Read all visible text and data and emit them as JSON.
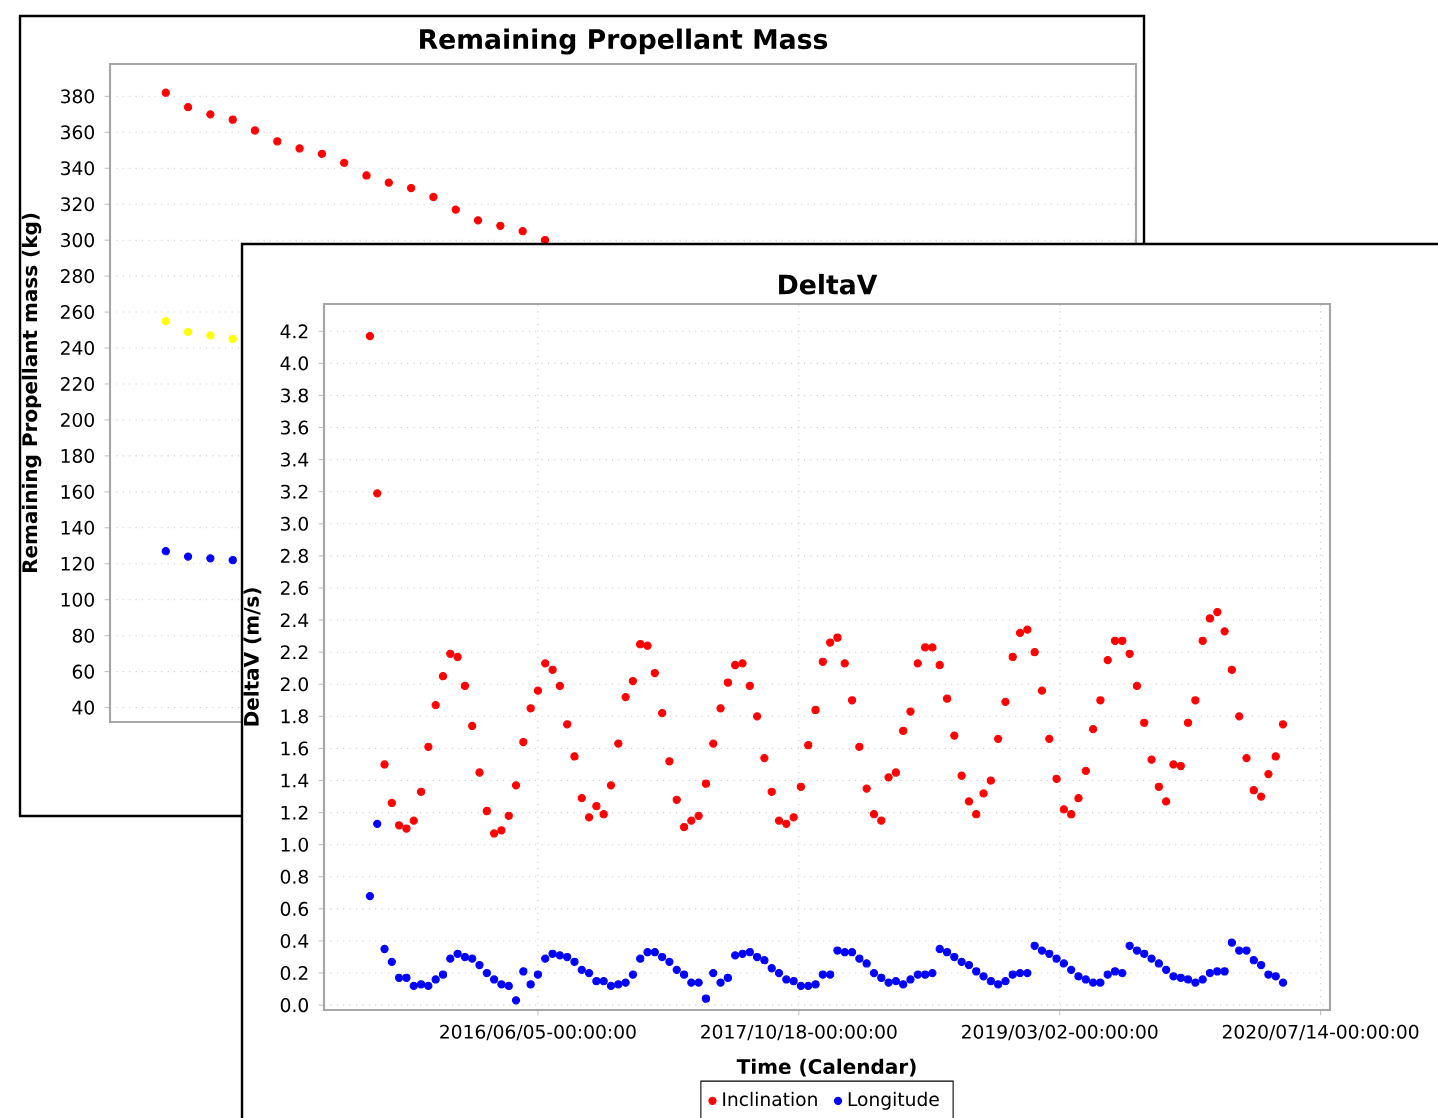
{
  "chart_data": [
    {
      "type": "scatter",
      "title": "Remaining Propellant Mass",
      "ylabel": "Remaining Propellant mass (kg)",
      "categories": [
        null,
        null,
        null,
        null,
        null,
        null,
        null,
        null,
        null,
        null,
        null,
        null,
        null,
        null,
        null,
        null,
        null,
        null,
        null,
        null,
        null,
        null,
        null,
        null,
        null,
        null,
        null,
        null,
        null,
        null,
        null,
        null,
        null,
        null,
        null,
        null,
        null,
        null,
        null,
        null,
        null,
        null,
        null,
        null,
        null,
        null
      ],
      "series": [
        {
          "color": "#ff0000",
          "values": [
            null,
            null,
            382,
            374,
            370,
            367,
            361,
            355,
            351,
            348,
            343,
            336,
            332,
            329,
            324,
            317,
            311,
            308,
            305,
            300,
            null,
            null,
            null,
            null,
            null,
            null,
            null,
            null,
            null,
            null,
            null,
            null,
            null,
            null,
            null,
            null,
            null,
            null,
            null,
            null,
            null,
            null,
            null,
            null,
            null,
            null
          ]
        },
        {
          "color": "#ffff00",
          "values": [
            null,
            null,
            255,
            249,
            247,
            245,
            null,
            null,
            null,
            null,
            null,
            null,
            null,
            null,
            null,
            null,
            null,
            null,
            null,
            null,
            null,
            null,
            null,
            null,
            null,
            null,
            null,
            null,
            null,
            null,
            null,
            null,
            null,
            null,
            null,
            null,
            null,
            null,
            null,
            null,
            null,
            null,
            null,
            null,
            null,
            null
          ]
        },
        {
          "color": "#0000ff",
          "values": [
            null,
            null,
            127,
            124,
            123,
            122,
            null,
            null,
            null,
            null,
            null,
            null,
            null,
            null,
            null,
            null,
            null,
            null,
            null,
            null,
            null,
            null,
            null,
            null,
            null,
            null,
            null,
            null,
            null,
            null,
            null,
            null,
            null,
            null,
            null,
            null,
            null,
            null,
            null,
            null,
            null,
            null,
            null,
            null,
            null,
            null
          ]
        }
      ],
      "ylim": [
        32,
        398
      ],
      "yticks": [
        40,
        60,
        80,
        100,
        120,
        140,
        160,
        180,
        200,
        220,
        240,
        260,
        280,
        300,
        320,
        340,
        360,
        380
      ],
      "grid": "y",
      "marker": "circle",
      "tick_labels": "y"
    },
    {
      "type": "scatter",
      "title": "DeltaV",
      "xlabel": "Time (Calendar)",
      "ylabel": "DeltaV (m/s)",
      "x": [
        "2015-07-19",
        "2015-08-02",
        "2015-08-16",
        "2015-08-30",
        "2015-09-13",
        "2015-09-27",
        "2015-10-11",
        "2015-10-25",
        "2015-11-08",
        "2015-11-22",
        "2015-12-06",
        "2015-12-20",
        "2016-01-03",
        "2016-01-17",
        "2016-01-31",
        "2016-02-14",
        "2016-02-28",
        "2016-03-13",
        "2016-03-27",
        "2016-04-10",
        "2016-04-24",
        "2016-05-08",
        "2016-05-22",
        "2016-06-05",
        "2016-06-19",
        "2016-07-03",
        "2016-07-17",
        "2016-07-31",
        "2016-08-14",
        "2016-08-28",
        "2016-09-11",
        "2016-09-25",
        "2016-10-09",
        "2016-10-23",
        "2016-11-06",
        "2016-11-20",
        "2016-12-04",
        "2016-12-18",
        "2017-01-01",
        "2017-01-15",
        "2017-01-29",
        "2017-02-12",
        "2017-02-26",
        "2017-03-12",
        "2017-03-26",
        "2017-04-09",
        "2017-04-23",
        "2017-05-07",
        "2017-05-21",
        "2017-06-04",
        "2017-06-18",
        "2017-07-02",
        "2017-07-16",
        "2017-07-30",
        "2017-08-13",
        "2017-08-27",
        "2017-09-10",
        "2017-09-24",
        "2017-10-08",
        "2017-10-22",
        "2017-11-05",
        "2017-11-19",
        "2017-12-03",
        "2017-12-17",
        "2017-12-31",
        "2018-01-14",
        "2018-01-28",
        "2018-02-11",
        "2018-02-25",
        "2018-03-11",
        "2018-03-25",
        "2018-04-08",
        "2018-04-22",
        "2018-05-06",
        "2018-05-20",
        "2018-06-03",
        "2018-06-17",
        "2018-07-01",
        "2018-07-15",
        "2018-07-29",
        "2018-08-12",
        "2018-08-26",
        "2018-09-09",
        "2018-09-23",
        "2018-10-07",
        "2018-10-21",
        "2018-11-04",
        "2018-11-18",
        "2018-12-02",
        "2018-12-16",
        "2018-12-30",
        "2019-01-13",
        "2019-01-27",
        "2019-02-10",
        "2019-02-24",
        "2019-03-10",
        "2019-03-24",
        "2019-04-07",
        "2019-04-21",
        "2019-05-05",
        "2019-05-19",
        "2019-06-02",
        "2019-06-16",
        "2019-06-30",
        "2019-07-14",
        "2019-07-28",
        "2019-08-11",
        "2019-08-25",
        "2019-09-08",
        "2019-09-22",
        "2019-10-06",
        "2019-10-20",
        "2019-11-03",
        "2019-11-17",
        "2019-12-01",
        "2019-12-15",
        "2019-12-29",
        "2020-01-12",
        "2020-01-26",
        "2020-02-09",
        "2020-02-23",
        "2020-03-08",
        "2020-03-22",
        "2020-04-05",
        "2020-04-19",
        "2020-05-03"
      ],
      "series": [
        {
          "name": "Inclination",
          "color": "#ff0000",
          "values": [
            4.17,
            3.19,
            1.5,
            1.26,
            1.12,
            1.1,
            1.15,
            1.33,
            1.61,
            1.87,
            2.05,
            2.19,
            2.17,
            1.99,
            1.74,
            1.45,
            1.21,
            1.07,
            1.09,
            1.18,
            1.37,
            1.64,
            1.85,
            1.96,
            2.13,
            2.09,
            1.99,
            1.75,
            1.55,
            1.29,
            1.17,
            1.24,
            1.19,
            1.37,
            1.63,
            1.92,
            2.02,
            2.25,
            2.24,
            2.07,
            1.82,
            1.52,
            1.28,
            1.11,
            1.15,
            1.18,
            1.38,
            1.63,
            1.85,
            2.01,
            2.12,
            2.13,
            1.99,
            1.8,
            1.54,
            1.33,
            1.15,
            1.13,
            1.17,
            1.36,
            1.62,
            1.84,
            2.14,
            2.26,
            2.29,
            2.13,
            1.9,
            1.61,
            1.35,
            1.19,
            1.15,
            1.42,
            1.45,
            1.71,
            1.83,
            2.13,
            2.23,
            2.23,
            2.12,
            1.91,
            1.68,
            1.43,
            1.27,
            1.19,
            1.32,
            1.4,
            1.66,
            1.89,
            2.17,
            2.32,
            2.34,
            2.2,
            1.96,
            1.66,
            1.41,
            1.22,
            1.19,
            1.29,
            1.46,
            1.72,
            1.9,
            2.15,
            2.27,
            2.27,
            2.19,
            1.99,
            1.76,
            1.53,
            1.36,
            1.27,
            1.5,
            1.49,
            1.76,
            1.9,
            2.27,
            2.41,
            2.45,
            2.33,
            2.09,
            1.8,
            1.54,
            1.34,
            1.3,
            1.44,
            1.55,
            1.75
          ]
        },
        {
          "name": "Longitude",
          "color": "#0000ff",
          "values": [
            0.68,
            1.13,
            0.35,
            0.27,
            0.17,
            0.17,
            0.12,
            0.13,
            0.12,
            0.16,
            0.19,
            0.29,
            0.32,
            0.3,
            0.29,
            0.25,
            0.2,
            0.16,
            0.13,
            0.12,
            0.03,
            0.21,
            0.13,
            0.19,
            0.29,
            0.32,
            0.31,
            0.3,
            0.27,
            0.22,
            0.2,
            0.15,
            0.15,
            0.12,
            0.13,
            0.14,
            0.19,
            0.29,
            0.33,
            0.33,
            0.3,
            0.27,
            0.22,
            0.19,
            0.14,
            0.14,
            0.04,
            0.2,
            0.14,
            0.17,
            0.31,
            0.32,
            0.33,
            0.3,
            0.28,
            0.23,
            0.2,
            0.16,
            0.15,
            0.12,
            0.12,
            0.13,
            0.19,
            0.19,
            0.34,
            0.33,
            0.33,
            0.29,
            0.26,
            0.2,
            0.17,
            0.14,
            0.15,
            0.13,
            0.16,
            0.19,
            0.19,
            0.2,
            0.35,
            0.33,
            0.3,
            0.27,
            0.25,
            0.21,
            0.18,
            0.15,
            0.13,
            0.15,
            0.19,
            0.2,
            0.2,
            0.37,
            0.34,
            0.32,
            0.29,
            0.26,
            0.22,
            0.18,
            0.16,
            0.14,
            0.14,
            0.19,
            0.21,
            0.2,
            0.37,
            0.34,
            0.32,
            0.29,
            0.26,
            0.22,
            0.18,
            0.17,
            0.16,
            0.14,
            0.16,
            0.2,
            0.21,
            0.21,
            0.39,
            0.34,
            0.34,
            0.28,
            0.25,
            0.19,
            0.18,
            0.14
          ]
        }
      ],
      "xlim": [
        "2015-04-22",
        "2020-08-01"
      ],
      "xticks": [
        {
          "value": "2016-06-05",
          "label": "2016/06/05-00:00:00"
        },
        {
          "value": "2017-10-18",
          "label": "2017/10/18-00:00:00"
        },
        {
          "value": "2019-03-02",
          "label": "2019/03/02-00:00:00"
        },
        {
          "value": "2020-07-14",
          "label": "2020/07/14-00:00:00"
        }
      ],
      "ylim": [
        -0.03,
        4.37
      ],
      "yticks": [
        {
          "value": 0,
          "label": "0.0"
        },
        0.2,
        0.4,
        0.6,
        0.8,
        {
          "value": 1,
          "label": "1.0"
        },
        1.2,
        1.4,
        1.6,
        1.8,
        {
          "value": 2,
          "label": "2.0"
        },
        2.2,
        2.4,
        2.6,
        2.8,
        {
          "value": 3,
          "label": "3.0"
        },
        3.2,
        3.4,
        3.6,
        3.8,
        {
          "value": 4,
          "label": "4.0"
        },
        4.2
      ],
      "grid": true,
      "marker": "circle",
      "legend": "bottom"
    }
  ]
}
